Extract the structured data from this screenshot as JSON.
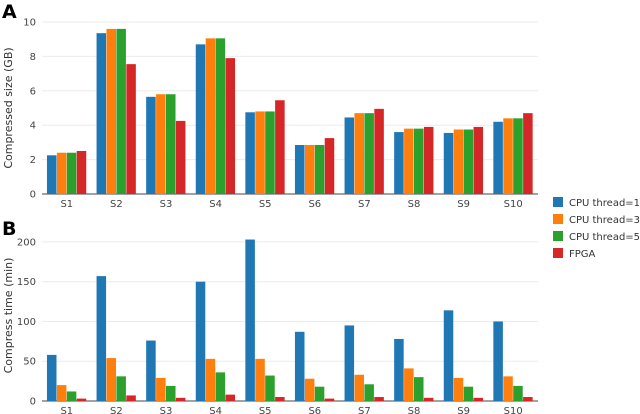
{
  "legend": {
    "position": "right",
    "items": [
      {
        "name": "CPU thread=1",
        "color": "#1f77b4"
      },
      {
        "name": "CPU thread=3",
        "color": "#ff7f0e"
      },
      {
        "name": "CPU thread=5",
        "color": "#2ca02c"
      },
      {
        "name": "FPGA",
        "color": "#d62728"
      }
    ]
  },
  "chart_data": [
    {
      "type": "bar",
      "panel_label": "A",
      "ylabel": "Compressed size (GB)",
      "xlabel": "",
      "ylim": [
        0,
        10
      ],
      "yticks": [
        0,
        2,
        4,
        6,
        8,
        10
      ],
      "grid": true,
      "categories": [
        "S1",
        "S2",
        "S3",
        "S4",
        "S5",
        "S6",
        "S7",
        "S8",
        "S9",
        "S10"
      ],
      "series": [
        {
          "name": "CPU thread=1",
          "color": "#1f77b4",
          "values": [
            2.25,
            9.35,
            5.65,
            8.7,
            4.75,
            2.85,
            4.45,
            3.6,
            3.55,
            4.2
          ]
        },
        {
          "name": "CPU thread=3",
          "color": "#ff7f0e",
          "values": [
            2.4,
            9.6,
            5.8,
            9.05,
            4.8,
            2.85,
            4.7,
            3.8,
            3.75,
            4.4
          ]
        },
        {
          "name": "CPU thread=5",
          "color": "#2ca02c",
          "values": [
            2.4,
            9.6,
            5.8,
            9.05,
            4.8,
            2.85,
            4.7,
            3.8,
            3.75,
            4.4
          ]
        },
        {
          "name": "FPGA",
          "color": "#d62728",
          "values": [
            2.5,
            7.55,
            4.25,
            7.9,
            5.45,
            3.25,
            4.95,
            3.9,
            3.9,
            4.7
          ]
        }
      ]
    },
    {
      "type": "bar",
      "panel_label": "B",
      "ylabel": "Compress time (min)",
      "xlabel": "",
      "ylim": [
        0,
        215
      ],
      "yticks": [
        0,
        50,
        100,
        150,
        200
      ],
      "grid": true,
      "categories": [
        "S1",
        "S2",
        "S3",
        "S4",
        "S5",
        "S6",
        "S7",
        "S8",
        "S9",
        "S10"
      ],
      "series": [
        {
          "name": "CPU thread=1",
          "color": "#1f77b4",
          "values": [
            58,
            157,
            76,
            150,
            203,
            87,
            95,
            78,
            114,
            100
          ]
        },
        {
          "name": "CPU thread=3",
          "color": "#ff7f0e",
          "values": [
            20,
            54,
            29,
            53,
            53,
            28,
            33,
            41,
            29,
            31
          ]
        },
        {
          "name": "CPU thread=5",
          "color": "#2ca02c",
          "values": [
            12,
            31,
            19,
            36,
            32,
            18,
            21,
            30,
            18,
            19
          ]
        },
        {
          "name": "FPGA",
          "color": "#d62728",
          "values": [
            3,
            7,
            4,
            8,
            5,
            3,
            5,
            4,
            4,
            5
          ]
        }
      ]
    }
  ]
}
